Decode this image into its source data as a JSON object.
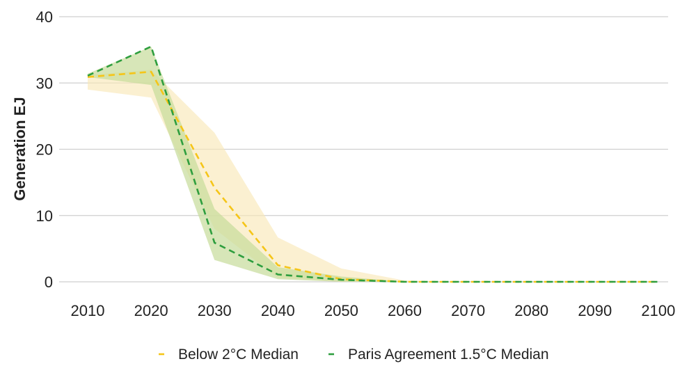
{
  "chart_data": {
    "type": "line",
    "title": "",
    "xlabel": "",
    "ylabel": "Generation EJ",
    "xlim": [
      2010,
      2100
    ],
    "ylim": [
      0,
      40
    ],
    "x_ticks": [
      2010,
      2020,
      2030,
      2040,
      2050,
      2060,
      2070,
      2080,
      2090,
      2100
    ],
    "y_ticks": [
      0,
      10,
      20,
      30,
      40
    ],
    "grid": "horizontal",
    "legend": "bottom",
    "series": [
      {
        "name": "Below 2°C Median",
        "color": "#f5c518",
        "band_color": "#f9e8b8",
        "x": [
          2010,
          2020,
          2030,
          2040,
          2050,
          2060,
          2070,
          2080,
          2090,
          2100
        ],
        "values": [
          30.9,
          31.7,
          14.2,
          2.5,
          0.4,
          0.0,
          0.0,
          0.0,
          0.0,
          0.0
        ],
        "band_lower": [
          29.0,
          27.8,
          8.0,
          0.6,
          0.0,
          0.0,
          0.0,
          0.0,
          0.0,
          0.0
        ],
        "band_upper": [
          31.2,
          32.0,
          22.5,
          6.7,
          2.0,
          0.2,
          0.0,
          0.0,
          0.0,
          0.0
        ]
      },
      {
        "name": "Paris Agreement 1.5°C Median",
        "color": "#2e9e3e",
        "band_color": "#c6dc9a",
        "x": [
          2010,
          2020,
          2030,
          2040,
          2050,
          2060,
          2070,
          2080,
          2090,
          2100
        ],
        "values": [
          31.1,
          35.5,
          5.9,
          1.1,
          0.3,
          0.0,
          0.0,
          0.0,
          0.0,
          0.0
        ],
        "band_lower": [
          30.9,
          29.7,
          3.3,
          0.4,
          0.0,
          0.0,
          0.0,
          0.0,
          0.0,
          0.0
        ],
        "band_upper": [
          31.4,
          35.5,
          11.0,
          2.2,
          0.8,
          0.0,
          0.0,
          0.0,
          0.0,
          0.0
        ]
      }
    ]
  }
}
